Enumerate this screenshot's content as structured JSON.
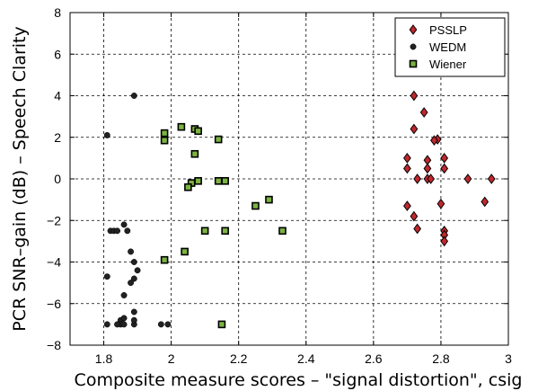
{
  "chart_data": {
    "type": "scatter",
    "xlabel": "Composite measure scores – \"signal distortion\", csig",
    "ylabel": "PCR SNR–gain (dB) – Speech Clarity",
    "xlim": [
      1.7,
      3.0
    ],
    "ylim": [
      -8,
      8
    ],
    "x_ticks": [
      1.8,
      2.0,
      2.2,
      2.4,
      2.6,
      2.8,
      3.0
    ],
    "x_tick_labels": [
      "1.8",
      "2",
      "2.2",
      "2.4",
      "2.6",
      "2.8",
      "3"
    ],
    "y_ticks": [
      -8,
      -6,
      -4,
      -2,
      0,
      2,
      4,
      6,
      8
    ],
    "y_tick_labels": [
      "−8",
      "−6",
      "−4",
      "−2",
      "0",
      "2",
      "4",
      "6",
      "8"
    ],
    "grid": true,
    "legend_position": "top-right",
    "series": [
      {
        "name": "PSSLP",
        "marker": "diamond",
        "color": "#c0282d",
        "x": [
          2.72,
          2.75,
          2.79,
          2.72,
          2.78,
          2.7,
          2.76,
          2.81,
          2.7,
          2.76,
          2.81,
          2.73,
          2.76,
          2.77,
          2.88,
          2.95,
          2.8,
          2.93,
          2.7,
          2.72,
          2.81,
          2.73,
          2.81,
          2.81
        ],
        "y": [
          4.0,
          3.2,
          1.9,
          2.4,
          1.85,
          1.0,
          0.9,
          1.0,
          0.5,
          0.5,
          0.5,
          0.0,
          0.0,
          0.0,
          0.0,
          0.0,
          -1.2,
          -1.1,
          -1.3,
          -1.8,
          -2.5,
          -2.4,
          -2.7,
          -3.0
        ]
      },
      {
        "name": "WEDM",
        "marker": "circle",
        "color": "#222222",
        "x": [
          1.89,
          1.81,
          1.82,
          1.83,
          1.84,
          1.86,
          1.87,
          1.88,
          1.89,
          1.9,
          1.89,
          1.88,
          1.81,
          1.86,
          1.89,
          1.85,
          1.85,
          1.86,
          1.84,
          1.81,
          1.89,
          1.86,
          1.89,
          1.97,
          1.99
        ],
        "y": [
          4.0,
          2.1,
          -2.5,
          -2.5,
          -2.5,
          -2.2,
          -2.5,
          -3.5,
          -4.0,
          -4.4,
          -4.8,
          -5.0,
          -4.7,
          -5.6,
          -6.4,
          -6.8,
          -7.0,
          -7.0,
          -7.0,
          -7.0,
          -7.0,
          -6.7,
          -6.8,
          -7.0,
          -7.0
        ]
      },
      {
        "name": "Wiener",
        "marker": "square",
        "color": "#7cb341",
        "x": [
          1.98,
          1.98,
          2.03,
          2.07,
          2.08,
          2.14,
          2.07,
          2.06,
          2.05,
          2.08,
          2.14,
          2.16,
          2.29,
          2.25,
          2.1,
          2.16,
          2.33,
          2.04,
          1.98,
          2.15
        ],
        "y": [
          2.2,
          1.85,
          2.5,
          2.4,
          2.3,
          1.9,
          1.2,
          -0.2,
          -0.4,
          -0.1,
          -0.1,
          -0.1,
          -1.0,
          -1.3,
          -2.5,
          -2.5,
          -2.5,
          -3.5,
          -3.9,
          -7.0
        ]
      }
    ]
  }
}
